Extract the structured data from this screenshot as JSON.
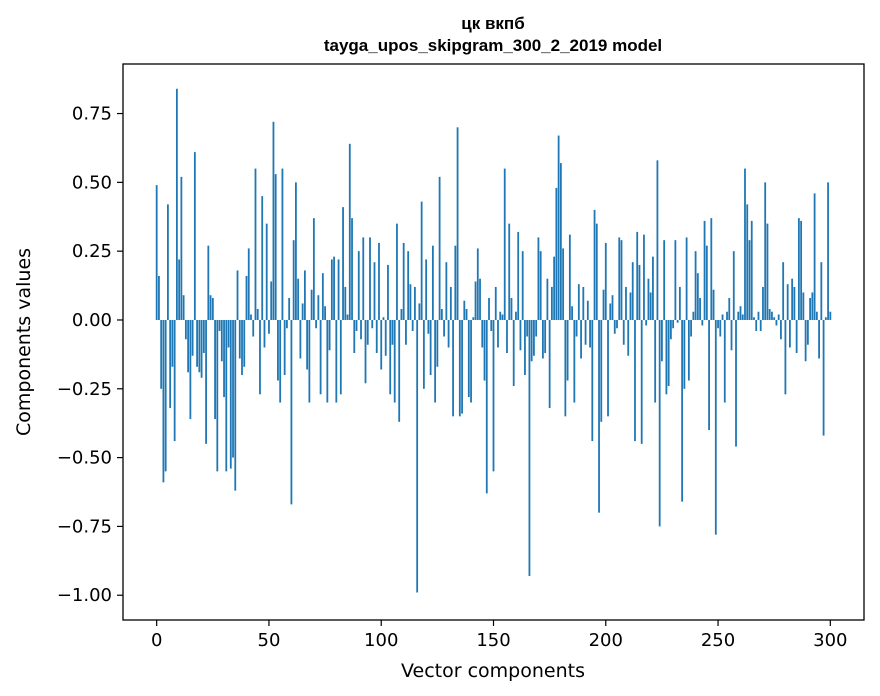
{
  "chart_data": {
    "type": "bar",
    "title": "цк вкпб",
    "subtitle": "tayga_upos_skipgram_300_2_2019 model",
    "xlabel": "Vector components",
    "ylabel": "Components values",
    "xlim": [
      -15,
      315
    ],
    "ylim": [
      -1.09,
      0.93
    ],
    "xticks": [
      0,
      50,
      100,
      150,
      200,
      250,
      300
    ],
    "yticks": [
      -1.0,
      -0.75,
      -0.5,
      -0.25,
      0.0,
      0.25,
      0.5,
      0.75
    ],
    "ytick_labels": [
      "−1.00",
      "−0.75",
      "−0.50",
      "−0.25",
      "0.00",
      "0.25",
      "0.50",
      "0.75"
    ],
    "color": "#1f77b4",
    "values": [
      0.49,
      0.16,
      -0.25,
      -0.59,
      -0.55,
      0.42,
      -0.32,
      -0.17,
      -0.44,
      0.84,
      0.22,
      0.52,
      0.09,
      -0.07,
      -0.19,
      -0.36,
      -0.13,
      0.61,
      -0.17,
      -0.19,
      -0.21,
      -0.12,
      -0.45,
      0.27,
      0.09,
      0.08,
      -0.36,
      -0.55,
      -0.04,
      -0.15,
      -0.28,
      -0.55,
      -0.1,
      -0.54,
      -0.5,
      -0.62,
      0.18,
      -0.14,
      -0.2,
      -0.17,
      0.16,
      0.26,
      0.02,
      -0.06,
      0.55,
      0.04,
      -0.27,
      0.45,
      -0.1,
      0.35,
      -0.05,
      0.14,
      0.72,
      0.53,
      -0.22,
      -0.3,
      0.55,
      -0.2,
      -0.03,
      0.08,
      -0.67,
      0.29,
      0.5,
      0.15,
      -0.14,
      0.06,
      0.18,
      -0.18,
      -0.3,
      0.11,
      0.37,
      -0.03,
      0.09,
      -0.27,
      0.17,
      0.05,
      -0.3,
      -0.11,
      0.22,
      0.23,
      -0.3,
      0.22,
      -0.27,
      0.41,
      0.12,
      0.02,
      0.64,
      0.37,
      -0.12,
      -0.04,
      0.25,
      -0.07,
      0.3,
      -0.23,
      -0.09,
      0.3,
      -0.03,
      0.21,
      -0.12,
      0.28,
      -0.18,
      0.01,
      -0.13,
      0.2,
      -0.27,
      -0.09,
      -0.3,
      0.35,
      -0.37,
      0.04,
      0.28,
      -0.09,
      0.25,
      0.13,
      -0.04,
      0.12,
      -0.99,
      0.06,
      0.43,
      -0.25,
      0.22,
      -0.05,
      -0.2,
      0.27,
      -0.3,
      -0.17,
      0.52,
      0.04,
      -0.06,
      0.21,
      -0.1,
      0.12,
      -0.35,
      0.27,
      0.7,
      -0.35,
      -0.34,
      0.07,
      0.04,
      -0.28,
      -0.3,
      0.01,
      0.14,
      0.26,
      0.15,
      -0.1,
      -0.22,
      -0.63,
      0.08,
      -0.04,
      -0.55,
      0.12,
      -0.1,
      0.03,
      0.02,
      0.55,
      -0.12,
      0.35,
      0.08,
      -0.24,
      0.03,
      0.32,
      -0.11,
      0.25,
      -0.2,
      -0.06,
      -0.93,
      -0.15,
      -0.13,
      -0.06,
      0.3,
      0.25,
      -0.14,
      -0.12,
      0.15,
      -0.32,
      0.12,
      0.23,
      0.48,
      0.67,
      0.57,
      0.26,
      -0.35,
      -0.22,
      0.31,
      0.05,
      -0.3,
      -0.06,
      0.13,
      -0.14,
      0.12,
      -0.09,
      0.07,
      -0.1,
      -0.44,
      0.4,
      0.35,
      -0.7,
      -0.37,
      0.11,
      0.28,
      -0.35,
      0.06,
      0.09,
      -0.05,
      -0.03,
      0.3,
      0.29,
      -0.09,
      0.12,
      -0.13,
      0.1,
      0.21,
      -0.44,
      0.32,
      0.2,
      -0.45,
      0.31,
      -0.02,
      0.15,
      0.1,
      0.23,
      -0.3,
      0.58,
      -0.75,
      -0.15,
      0.29,
      -0.27,
      -0.24,
      -0.07,
      -0.03,
      0.29,
      -0.01,
      0.12,
      -0.66,
      -0.25,
      0.3,
      -0.22,
      -0.06,
      0.03,
      0.25,
      0.17,
      0.08,
      -0.02,
      0.36,
      0.27,
      -0.4,
      0.37,
      0.11,
      -0.78,
      -0.03,
      -0.06,
      0.02,
      -0.3,
      0.03,
      0.08,
      -0.11,
      0.25,
      -0.46,
      0.03,
      0.05,
      0.02,
      0.55,
      0.42,
      0.29,
      0.36,
      0.01,
      -0.04,
      0.03,
      -0.04,
      0.12,
      0.5,
      0.35,
      0.04,
      0.03,
      0.01,
      -0.02,
      0.02,
      -0.07,
      0.21,
      -0.27,
      0.13,
      -0.1,
      0.15,
      0.12,
      -0.12,
      0.37,
      0.36,
      0.1,
      -0.15,
      -0.09,
      0.08,
      0.1,
      0.46,
      0.03,
      -0.14,
      0.21,
      -0.42,
      0.01,
      0.5,
      0.03
    ]
  }
}
